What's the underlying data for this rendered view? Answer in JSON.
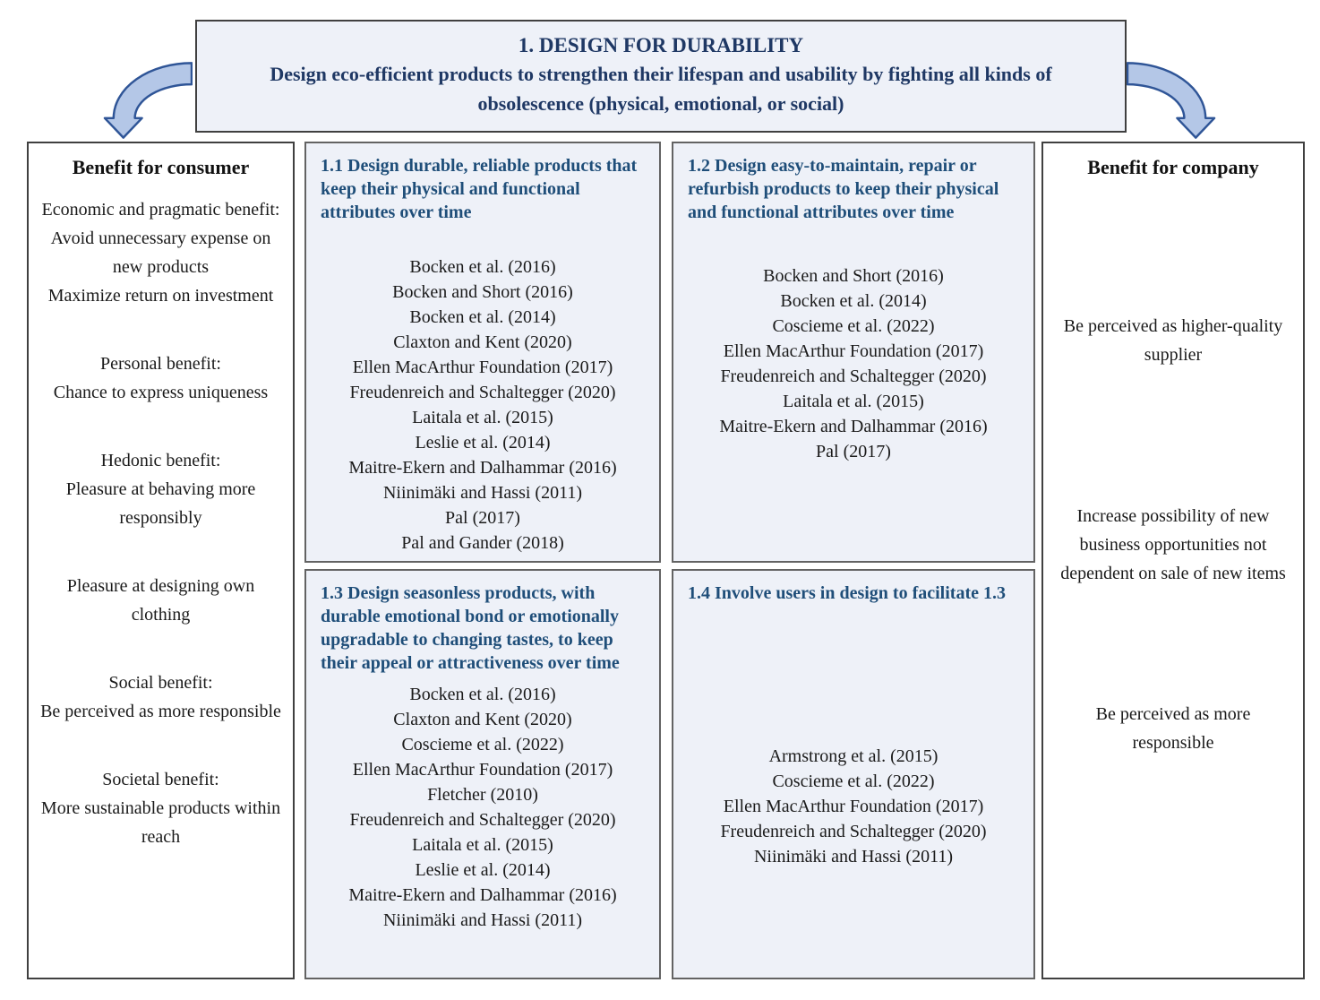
{
  "header": {
    "title": "1. DESIGN FOR DURABILITY",
    "description": "Design eco-efficient products to strengthen their lifespan and usability by fighting all kinds of obsolescence (physical, emotional, or social)"
  },
  "consumer_column": {
    "title": "Benefit for consumer",
    "paragraphs": [
      "Economic and pragmatic benefit:\nAvoid unnecessary expense on new products\nMaximize return on investment",
      "Personal benefit:\nChance to express uniqueness",
      "Hedonic benefit:\nPleasure at behaving more responsibly",
      "Pleasure at designing own clothing",
      "Social benefit:\nBe perceived as more responsible",
      "Societal benefit:\nMore sustainable products within reach"
    ]
  },
  "strategies": [
    {
      "id": "1.1",
      "title": "1.1 Design durable, reliable products that keep their physical and functional attributes over time",
      "citations": [
        "Bocken et al. (2016)",
        "Bocken and Short (2016)",
        "Bocken et al. (2014)",
        "Claxton and Kent (2020)",
        "Ellen MacArthur Foundation (2017)",
        "Freudenreich and Schaltegger (2020)",
        "Laitala et al. (2015)",
        "Leslie et al. (2014)",
        "Maitre-Ekern and Dalhammar (2016)",
        "Niinimäki and Hassi (2011)",
        "Pal (2017)",
        "Pal and Gander (2018)"
      ]
    },
    {
      "id": "1.2",
      "title": "1.2 Design easy-to-maintain, repair or refurbish products to keep their physical and functional attributes over time",
      "citations": [
        "Bocken and Short (2016)",
        "Bocken et al. (2014)",
        "Coscieme et al. (2022)",
        "Ellen MacArthur Foundation (2017)",
        "Freudenreich and Schaltegger (2020)",
        "Laitala et al. (2015)",
        "Maitre-Ekern and Dalhammar (2016)",
        "Pal (2017)"
      ]
    },
    {
      "id": "1.3",
      "title": "1.3 Design seasonless products, with durable emotional bond or emotionally upgradable to changing tastes, to keep their appeal or attractiveness over time",
      "citations": [
        "Bocken et al. (2016)",
        "Claxton and Kent (2020)",
        "Coscieme et al. (2022)",
        "Ellen MacArthur Foundation (2017)",
        "Fletcher (2010)",
        "Freudenreich and Schaltegger (2020)",
        "Laitala et al. (2015)",
        "Leslie et al. (2014)",
        "Maitre-Ekern and Dalhammar (2016)",
        "Niinimäki and Hassi (2011)"
      ]
    },
    {
      "id": "1.4",
      "title": "1.4 Involve users in design to facilitate 1.3",
      "citations": [
        "Armstrong et al. (2015)",
        "Coscieme et al. (2022)",
        "Ellen MacArthur Foundation (2017)",
        "Freudenreich and Schaltegger (2020)",
        "Niinimäki and Hassi (2011)"
      ]
    }
  ],
  "company_column": {
    "title": "Benefit for company",
    "paragraphs": [
      "Be perceived as higher-quality supplier",
      "Increase possibility of new business opportunities not dependent on sale of new items",
      "Be perceived as more responsible"
    ]
  },
  "colors": {
    "header_text": "#1f3864",
    "strategy_title_text": "#1f4e79",
    "body_text": "#1a1a1a",
    "box_background": "#eef1f8",
    "outer_border": "#404040",
    "inner_border": "#636363",
    "arrow_fill": "#b4c7e7",
    "arrow_stroke": "#2f5597"
  }
}
